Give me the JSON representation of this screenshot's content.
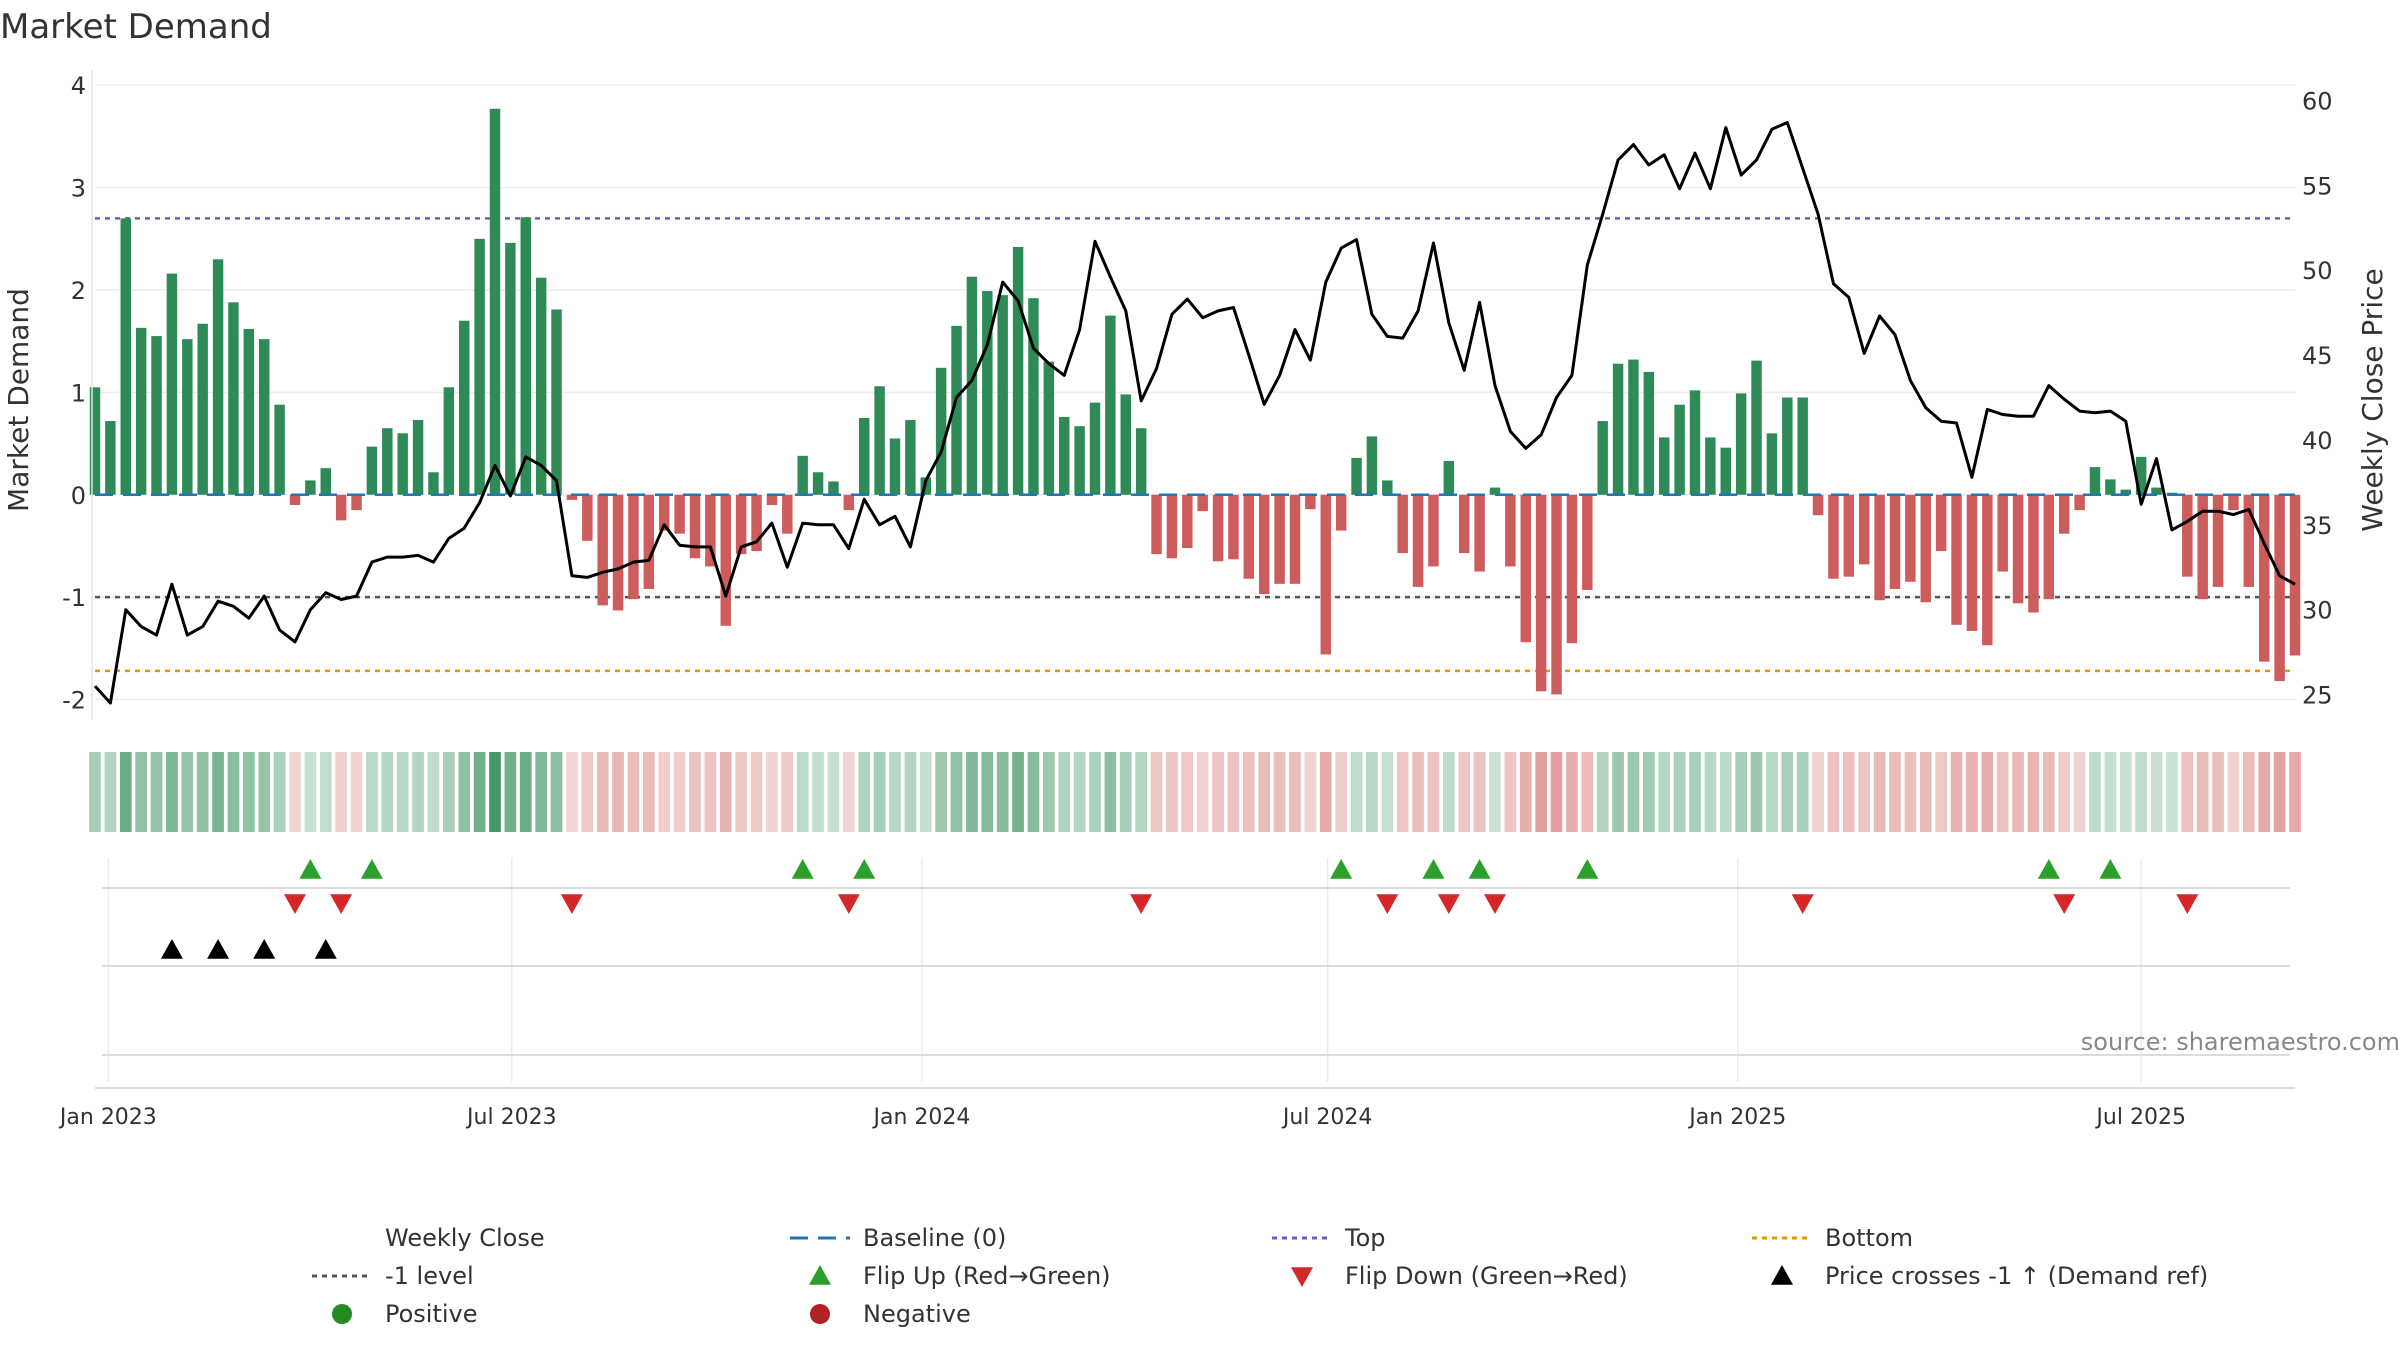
{
  "title": "Market Demand",
  "source": "source: sharemaestro.com",
  "colors": {
    "positive_bar": "#2e8b57",
    "negative_bar": "#cd5c5c",
    "price_line": "#000000",
    "baseline": "#1f77b4",
    "top": "#6a5acd",
    "minus_one": "#555555",
    "bottom": "#e69500",
    "flip_up": "#2ca02c",
    "flip_down": "#d62728",
    "price_cross": "#000000",
    "positive_dot": "#228b22",
    "negative_dot": "#b22222"
  },
  "chart_data": {
    "type": "bar",
    "title": "Market Demand",
    "ylabel": "Market Demand",
    "y2label": "Weekly Close Price",
    "ylim": [
      -2.2,
      4.1
    ],
    "y2lim": [
      23.5,
      61.5
    ],
    "yticks": [
      -2,
      -1,
      0,
      1,
      2,
      3,
      4
    ],
    "y2ticks": [
      25,
      30,
      35,
      40,
      45,
      50,
      55,
      60
    ],
    "start_date": "2022-12-26",
    "end_date": "2025-09-08",
    "xticks": [
      {
        "label": "Jan 2023",
        "date": "2023-01-01"
      },
      {
        "label": "Jul 2023",
        "date": "2023-07-01"
      },
      {
        "label": "Jan 2024",
        "date": "2024-01-01"
      },
      {
        "label": "Jul 2024",
        "date": "2024-07-01"
      },
      {
        "label": "Jan 2025",
        "date": "2025-01-01"
      },
      {
        "label": "Jul 2025",
        "date": "2025-07-01"
      }
    ],
    "reference_lines": {
      "baseline": 0,
      "minus_one": -1,
      "top": 2.7,
      "bottom": -1.72
    },
    "series": [
      {
        "name": "Market Demand",
        "values": [
          1.05,
          0.72,
          2.7,
          1.63,
          1.55,
          2.16,
          1.52,
          1.67,
          2.3,
          1.88,
          1.62,
          1.52,
          0.88,
          -0.1,
          0.14,
          0.26,
          -0.25,
          -0.15,
          0.47,
          0.65,
          0.6,
          0.73,
          0.22,
          1.05,
          1.7,
          2.5,
          3.77,
          2.46,
          2.71,
          2.12,
          1.81,
          -0.05,
          -0.45,
          -1.08,
          -1.13,
          -1.02,
          -0.92,
          -0.35,
          -0.38,
          -0.62,
          -0.7,
          -1.28,
          -0.58,
          -0.55,
          -0.1,
          -0.38,
          0.38,
          0.22,
          0.13,
          -0.15,
          0.75,
          1.06,
          0.55,
          0.73,
          0.17,
          1.24,
          1.65,
          2.13,
          1.99,
          1.95,
          2.42,
          1.92,
          1.3,
          0.76,
          0.67,
          0.9,
          1.75,
          0.98,
          0.65,
          -0.58,
          -0.62,
          -0.52,
          -0.16,
          -0.65,
          -0.63,
          -0.82,
          -0.97,
          -0.87,
          -0.87,
          -0.14,
          -1.56,
          -0.35,
          0.36,
          0.57,
          0.14,
          -0.57,
          -0.9,
          -0.7,
          0.33,
          -0.57,
          -0.75,
          0.07,
          -0.7,
          -1.44,
          -1.92,
          -1.95,
          -1.45,
          -0.93,
          0.72,
          1.28,
          1.32,
          1.2,
          0.56,
          0.88,
          1.02,
          0.56,
          0.46,
          0.99,
          1.31,
          0.6,
          0.95,
          0.95,
          -0.2,
          -0.82,
          -0.8,
          -0.68,
          -1.03,
          -0.92,
          -0.85,
          -1.05,
          -0.55,
          -1.27,
          -1.33,
          -1.47,
          -0.75,
          -1.06,
          -1.15,
          -1.02,
          -0.38,
          -0.15,
          0.27,
          0.15,
          0.05,
          0.37,
          0.07,
          0.02,
          -0.8,
          -1.02,
          -0.9,
          -0.15,
          -0.9,
          -1.63,
          -1.82,
          -1.57
        ]
      },
      {
        "name": "Weekly Close",
        "values": [
          25.5,
          24.5,
          30,
          29,
          28.5,
          31.5,
          28.5,
          29,
          30.5,
          30.2,
          29.5,
          30.8,
          28.8,
          28.1,
          30,
          31,
          30.6,
          30.8,
          32.8,
          33.1,
          33.1,
          33.2,
          32.8,
          34.2,
          34.8,
          36.3,
          38.5,
          36.7,
          39,
          38.5,
          37.6,
          32,
          31.9,
          32.2,
          32.4,
          32.8,
          32.9,
          35,
          33.8,
          33.7,
          33.7,
          30.8,
          33.7,
          34,
          35.1,
          32.5,
          35.1,
          35,
          35,
          33.6,
          36.5,
          35,
          35.5,
          33.7,
          37.6,
          39.3,
          42.5,
          43.5,
          45.6,
          49.3,
          48.2,
          45.4,
          44.5,
          43.8,
          46.5,
          51.7,
          49.6,
          47.6,
          42.3,
          44.2,
          47.4,
          48.3,
          47.2,
          47.6,
          47.8,
          45,
          42.1,
          43.8,
          46.5,
          44.7,
          49.3,
          51.3,
          51.8,
          47.4,
          46.1,
          46,
          47.6,
          51.6,
          46.9,
          44.1,
          48.1,
          43.2,
          40.5,
          39.5,
          40.3,
          42.5,
          43.8,
          50.3,
          53.3,
          56.5,
          57.4,
          56.2,
          56.8,
          54.8,
          56.9,
          54.8,
          58.4,
          55.6,
          56.5,
          58.3,
          58.7,
          56,
          53.3,
          49.2,
          48.4,
          45.1,
          47.3,
          46.2,
          43.5,
          41.9,
          41.1,
          41,
          37.8,
          41.8,
          41.5,
          41.4,
          41.4,
          43.2,
          42.4,
          41.7,
          41.6,
          41.7,
          41.1,
          36.2,
          38.9,
          34.7,
          35.2,
          35.8,
          35.8,
          35.6,
          35.9,
          33.9,
          32,
          31.5
        ]
      }
    ],
    "flip_up_weeks": [
      14,
      18,
      46,
      50,
      81,
      87,
      90,
      97,
      127,
      131
    ],
    "flip_down_weeks": [
      13,
      16,
      31,
      49,
      68,
      84,
      88,
      91,
      111,
      128,
      136
    ],
    "price_cross_weeks": [
      5,
      8,
      11,
      15
    ]
  },
  "legend": [
    {
      "key": "weekly_close",
      "label": "Weekly Close",
      "icon": "solid-line"
    },
    {
      "key": "baseline",
      "label": "Baseline (0)",
      "icon": "dashed-line"
    },
    {
      "key": "top",
      "label": "Top",
      "icon": "dotted-line"
    },
    {
      "key": "bottom",
      "label": "Bottom",
      "icon": "dotted-line"
    },
    {
      "key": "minus_one",
      "label": "-1 level",
      "icon": "dotted-line"
    },
    {
      "key": "flip_up",
      "label": "Flip Up (Red→Green)",
      "icon": "triangle-up"
    },
    {
      "key": "flip_down",
      "label": "Flip Down (Green→Red)",
      "icon": "triangle-down"
    },
    {
      "key": "price_cross",
      "label": "Price crosses -1 ↑ (Demand ref)",
      "icon": "triangle-up"
    },
    {
      "key": "positive",
      "label": "Positive",
      "icon": "circle"
    },
    {
      "key": "negative",
      "label": "Negative",
      "icon": "circle"
    }
  ]
}
